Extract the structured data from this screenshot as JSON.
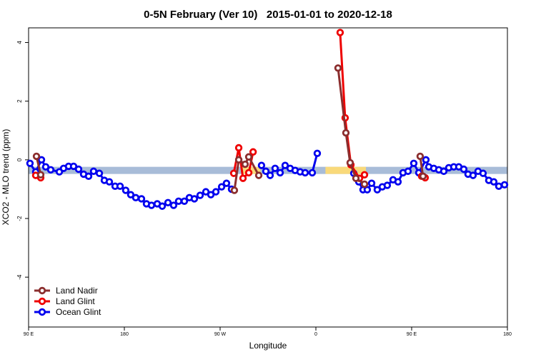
{
  "chart_data": {
    "type": "line",
    "title": "0-5N February (Ver 10)   2015-01-01 to 2020-12-18",
    "x_label": "Longitude",
    "y_label": "XCO2 - MLO trend (ppm)",
    "xlim": [
      90,
      540
    ],
    "ylim": [
      -5.7,
      4.5
    ],
    "xticks": [
      {
        "value": 90,
        "label": "90 E"
      },
      {
        "value": 180,
        "label": "180"
      },
      {
        "value": 270,
        "label": "90 W"
      },
      {
        "value": 360,
        "label": "0"
      },
      {
        "value": 450,
        "label": "90 E"
      },
      {
        "value": 540,
        "label": "180"
      }
    ],
    "yticks": [
      -4,
      -2,
      0,
      2,
      4
    ],
    "legend": "bottom-left",
    "reference_band": {
      "y": -0.36,
      "color": "#a8bcd8",
      "highlights": [
        [
          290,
          308
        ],
        [
          369,
          407
        ]
      ],
      "highlight_color": "#f9d97a"
    },
    "series": [
      {
        "name": "Land Nadir",
        "color": "#8b2e2e",
        "x": [
          97.4,
          101.4,
          null,
          283.4,
          287.5,
          293.5,
          296.9,
          306.3,
          null,
          380.8,
          388.2,
          392.2,
          397.6,
          405.7,
          null,
          458.0,
          460.7
        ],
        "values": [
          0.12,
          -0.51,
          null,
          -1.04,
          0.0,
          -0.15,
          0.1,
          -0.53,
          null,
          3.13,
          0.92,
          -0.1,
          -0.63,
          -0.83,
          null,
          0.12,
          -0.56
        ]
      },
      {
        "name": "Land Glint",
        "color": "#ee0000",
        "x": [
          96.7,
          101.4,
          null,
          282.8,
          287.5,
          291.5,
          296.9,
          301.0,
          null,
          382.8,
          387.5,
          392.9,
          401.0,
          405.7,
          null,
          459.4,
          462.7
        ],
        "values": [
          -0.53,
          -0.61,
          null,
          -0.46,
          0.41,
          -0.63,
          -0.44,
          0.27,
          null,
          4.34,
          1.43,
          -0.17,
          -0.63,
          -0.51,
          null,
          -0.56,
          -0.61
        ]
      },
      {
        "name": "Ocean Glint",
        "color": "#0000ee",
        "x": [
          91.3,
          96.7,
          102.1,
          106.1,
          110.8,
          118.9,
          122.9,
          127.6,
          132.3,
          137.0,
          141.7,
          146.4,
          151.1,
          156.5,
          161.2,
          165.9,
          171.3,
          176.0,
          181.3,
          186.0,
          190.7,
          196.1,
          200.8,
          205.5,
          210.9,
          215.6,
          221.0,
          226.3,
          231.0,
          236.4,
          241.1,
          245.8,
          251.2,
          256.6,
          261.3,
          266.0,
          271.4,
          276.0,
          280.7,
          null,
          308.9,
          313.0,
          317.0,
          321.7,
          326.4,
          331.1,
          335.8,
          340.5,
          345.2,
          349.9,
          356.6,
          361.3,
          null,
          395.6,
          400.3,
          404.3,
          408.3,
          412.4,
          417.7,
          422.4,
          427.1,
          432.5,
          437.2,
          441.9,
          446.6,
          452.0,
          456.7,
          463.4,
          466.1,
          470.8,
          475.5,
          480.2,
          484.9,
          489.6,
          494.3,
          499.0,
          503.0,
          507.7,
          512.4,
          517.1,
          522.5,
          527.2,
          531.9,
          537.3
        ],
        "values": [
          -0.12,
          -0.41,
          0.0,
          -0.24,
          -0.34,
          -0.41,
          -0.29,
          -0.22,
          -0.22,
          -0.32,
          -0.49,
          -0.56,
          -0.39,
          -0.46,
          -0.7,
          -0.75,
          -0.9,
          -0.9,
          -1.04,
          -1.19,
          -1.29,
          -1.33,
          -1.5,
          -1.55,
          -1.5,
          -1.58,
          -1.46,
          -1.55,
          -1.41,
          -1.41,
          -1.29,
          -1.33,
          -1.21,
          -1.09,
          -1.19,
          -1.09,
          -0.92,
          -0.8,
          -1.0,
          null,
          -0.19,
          -0.39,
          -0.53,
          -0.29,
          -0.44,
          -0.19,
          -0.29,
          -0.36,
          -0.41,
          -0.44,
          -0.44,
          0.22,
          null,
          -0.46,
          -0.75,
          -1.02,
          -1.02,
          -0.8,
          -1.02,
          -0.92,
          -0.87,
          -0.68,
          -0.75,
          -0.44,
          -0.39,
          -0.12,
          -0.44,
          0.0,
          -0.24,
          -0.29,
          -0.34,
          -0.39,
          -0.27,
          -0.24,
          -0.24,
          -0.32,
          -0.49,
          -0.53,
          -0.39,
          -0.46,
          -0.7,
          -0.75,
          -0.9,
          -0.85
        ]
      }
    ]
  }
}
